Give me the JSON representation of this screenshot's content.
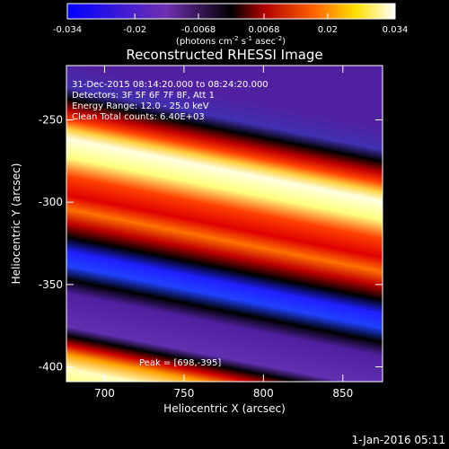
{
  "chart_data": {
    "type": "heatmap",
    "title": "Reconstructed RHESSI Image",
    "x_label": "Heliocentric X (arcsec)",
    "y_label": "Heliocentric Y (arcsec)",
    "xlim": [
      676,
      875
    ],
    "xticks": [
      700,
      750,
      800,
      850
    ],
    "ylim": [
      -409,
      -217
    ],
    "yticks": [
      -250,
      -300,
      -350,
      -400
    ],
    "colorbar": {
      "lim": [
        -0.034,
        0.034
      ],
      "ticks": [
        -0.034,
        -0.02,
        -0.0068,
        0.0068,
        0.02,
        0.034
      ],
      "label": [
        {
          "text": "(photons cm"
        },
        {
          "text": "-2",
          "sup": true
        },
        {
          "text": " s"
        },
        {
          "text": "-1",
          "sup": true
        },
        {
          "text": " asec"
        },
        {
          "text": "-2",
          "sup": true
        },
        {
          "text": ")"
        }
      ]
    },
    "annotations": [
      "31-Dec-2015 08:14:20.000 to 08:24:20.000",
      "Detectors: 3F 5F 6F 7F 8F, Att 1",
      "Energy Range: 12.0 - 25.0 keV",
      "Clean     Total counts: 6.40E+03"
    ],
    "peak_label": "Peak = [698,-395]",
    "timestamp": "1-Jan-2016 05:11"
  }
}
